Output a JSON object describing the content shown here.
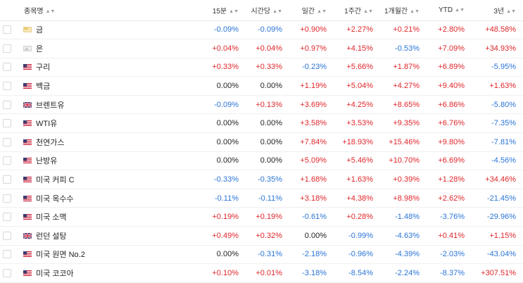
{
  "headers": [
    "종목명",
    "15분",
    "시간당",
    "일간",
    "1주간",
    "1개월간",
    "YTD",
    "3년"
  ],
  "rows": [
    {
      "name": "금",
      "icon": "gold-icon",
      "values": [
        "-0.09%",
        "-0.09%",
        "+0.90%",
        "+2.27%",
        "+0.21%",
        "+2.80%",
        "+48.58%"
      ]
    },
    {
      "name": "은",
      "icon": "silver-icon",
      "values": [
        "+0.04%",
        "+0.04%",
        "+0.97%",
        "+4.15%",
        "-0.53%",
        "+7.09%",
        "+34.93%"
      ]
    },
    {
      "name": "구리",
      "icon": "us-flag-icon",
      "values": [
        "+0.33%",
        "+0.33%",
        "-0.23%",
        "+5.66%",
        "+1.87%",
        "+6.89%",
        "-5.95%"
      ]
    },
    {
      "name": "백금",
      "icon": "us-flag-icon",
      "values": [
        "0.00%",
        "0.00%",
        "+1.19%",
        "+5.04%",
        "+4.27%",
        "+9.40%",
        "+1.63%"
      ]
    },
    {
      "name": "브렌트유",
      "icon": "uk-flag-icon",
      "values": [
        "-0.09%",
        "+0.13%",
        "+3.69%",
        "+4.25%",
        "+8.65%",
        "+6.86%",
        "-5.80%"
      ]
    },
    {
      "name": "WTI유",
      "icon": "us-flag-icon",
      "values": [
        "0.00%",
        "0.00%",
        "+3.58%",
        "+3.53%",
        "+9.35%",
        "+6.76%",
        "-7.35%"
      ]
    },
    {
      "name": "천연가스",
      "icon": "us-flag-icon",
      "values": [
        "0.00%",
        "0.00%",
        "+7.84%",
        "+18.93%",
        "+15.46%",
        "+9.80%",
        "-7.81%"
      ]
    },
    {
      "name": "난방유",
      "icon": "us-flag-icon",
      "values": [
        "0.00%",
        "0.00%",
        "+5.09%",
        "+5.46%",
        "+10.70%",
        "+6.69%",
        "-4.56%"
      ]
    },
    {
      "name": "미국 커피 C",
      "icon": "us-flag-icon",
      "values": [
        "-0.33%",
        "-0.35%",
        "+1.68%",
        "+1.63%",
        "+0.39%",
        "+1.28%",
        "+34.46%"
      ]
    },
    {
      "name": "미국 옥수수",
      "icon": "us-flag-icon",
      "values": [
        "-0.11%",
        "-0.11%",
        "+3.18%",
        "+4.38%",
        "+8.98%",
        "+2.62%",
        "-21.45%"
      ]
    },
    {
      "name": "미국 소맥",
      "icon": "us-flag-icon",
      "values": [
        "+0.19%",
        "+0.19%",
        "-0.61%",
        "+0.28%",
        "-1.48%",
        "-3.76%",
        "-29.96%"
      ]
    },
    {
      "name": "런던 설탕",
      "icon": "uk-flag-icon",
      "values": [
        "+0.49%",
        "+0.32%",
        "0.00%",
        "-0.99%",
        "-4.63%",
        "+0.41%",
        "+1.15%"
      ]
    },
    {
      "name": "미국 원면 No.2",
      "icon": "us-flag-icon",
      "values": [
        "0.00%",
        "-0.31%",
        "-2.18%",
        "-0.96%",
        "-4.39%",
        "-2.03%",
        "-43.04%"
      ]
    },
    {
      "name": "미국 코코아",
      "icon": "us-flag-icon",
      "values": [
        "+0.10%",
        "+0.01%",
        "-3.18%",
        "-8.54%",
        "-2.24%",
        "-8.37%",
        "+307.51%"
      ]
    }
  ],
  "colors": {
    "positive": "#e0262a",
    "negative": "#2a74d6",
    "neutral": "#222222"
  }
}
